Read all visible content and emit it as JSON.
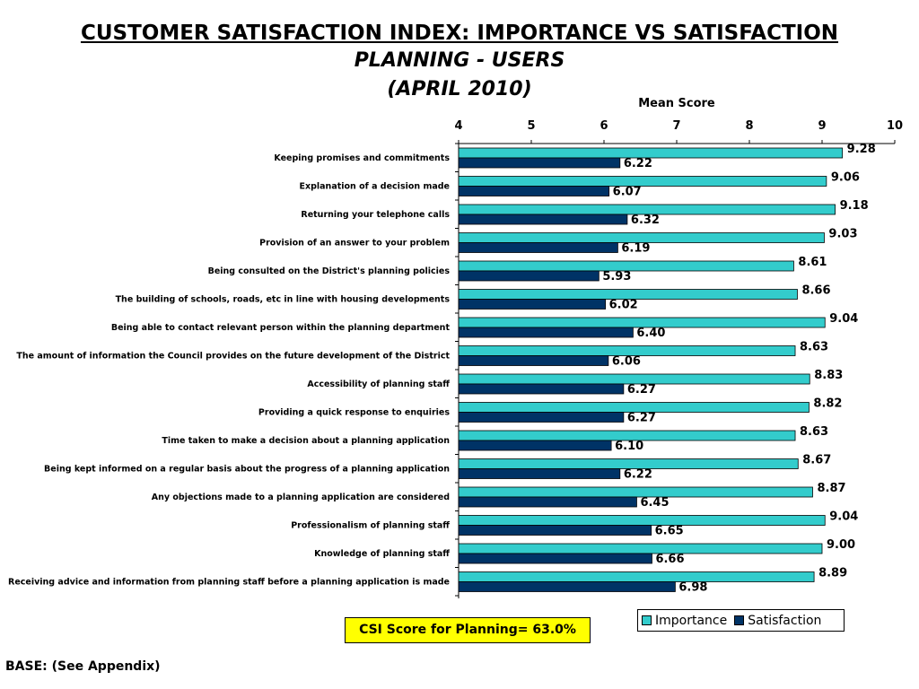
{
  "titles": {
    "line1": "CUSTOMER SATISFACTION INDEX: IMPORTANCE VS SATISFACTION",
    "line2": "PLANNING - USERS",
    "line3": "(APRIL 2010)"
  },
  "csi_box": "CSI Score for Planning= 63.0%",
  "base_note": "BASE: (See Appendix)",
  "colors": {
    "importance": "#33cccc",
    "satisfaction": "#003366"
  },
  "chart_data": {
    "type": "bar",
    "orientation": "horizontal",
    "xlabel": "Mean Score",
    "xlim": [
      4,
      10
    ],
    "xticks": [
      4,
      5,
      6,
      7,
      8,
      9,
      10
    ],
    "legend_position": "bottom-right",
    "categories": [
      "Keeping promises and commitments",
      "Explanation of a decision made",
      "Returning your telephone calls",
      "Provision of an answer to your problem",
      "Being consulted on the District's planning policies",
      "The building of schools, roads, etc in line with housing developments",
      "Being able to contact relevant person within the planning department",
      "The amount of information the Council provides on the future development of the District",
      "Accessibility of planning staff",
      "Providing a quick response to enquiries",
      "Time taken to make a decision about a planning application",
      "Being kept informed on a regular basis about the progress of a planning application",
      "Any objections made to a planning application are considered",
      "Professionalism of planning staff",
      "Knowledge of planning staff",
      "Receiving advice and information from planning staff before a planning application is made"
    ],
    "series": [
      {
        "name": "Importance",
        "values": [
          9.28,
          9.06,
          9.18,
          9.03,
          8.61,
          8.66,
          9.04,
          8.63,
          8.83,
          8.82,
          8.63,
          8.67,
          8.87,
          9.04,
          9.0,
          8.89
        ],
        "labels": [
          "9.28",
          "9.06",
          "9.18",
          "9.03",
          "8.61",
          "8.66",
          "9.04",
          "8.63",
          "8.83",
          "8.82",
          "8.63",
          "8.67",
          "8.87",
          "9.04",
          "9.00",
          "8.89"
        ]
      },
      {
        "name": "Satisfaction",
        "values": [
          6.22,
          6.07,
          6.32,
          6.19,
          5.93,
          6.02,
          6.4,
          6.06,
          6.27,
          6.27,
          6.1,
          6.22,
          6.45,
          6.65,
          6.66,
          6.98
        ],
        "labels": [
          "6.22",
          "6.07",
          "6.32",
          "6.19",
          "5.93",
          "6.02",
          "6.40",
          "6.06",
          "6.27",
          "6.27",
          "6.10",
          "6.22",
          "6.45",
          "6.65",
          "6.66",
          "6.98"
        ]
      }
    ]
  }
}
